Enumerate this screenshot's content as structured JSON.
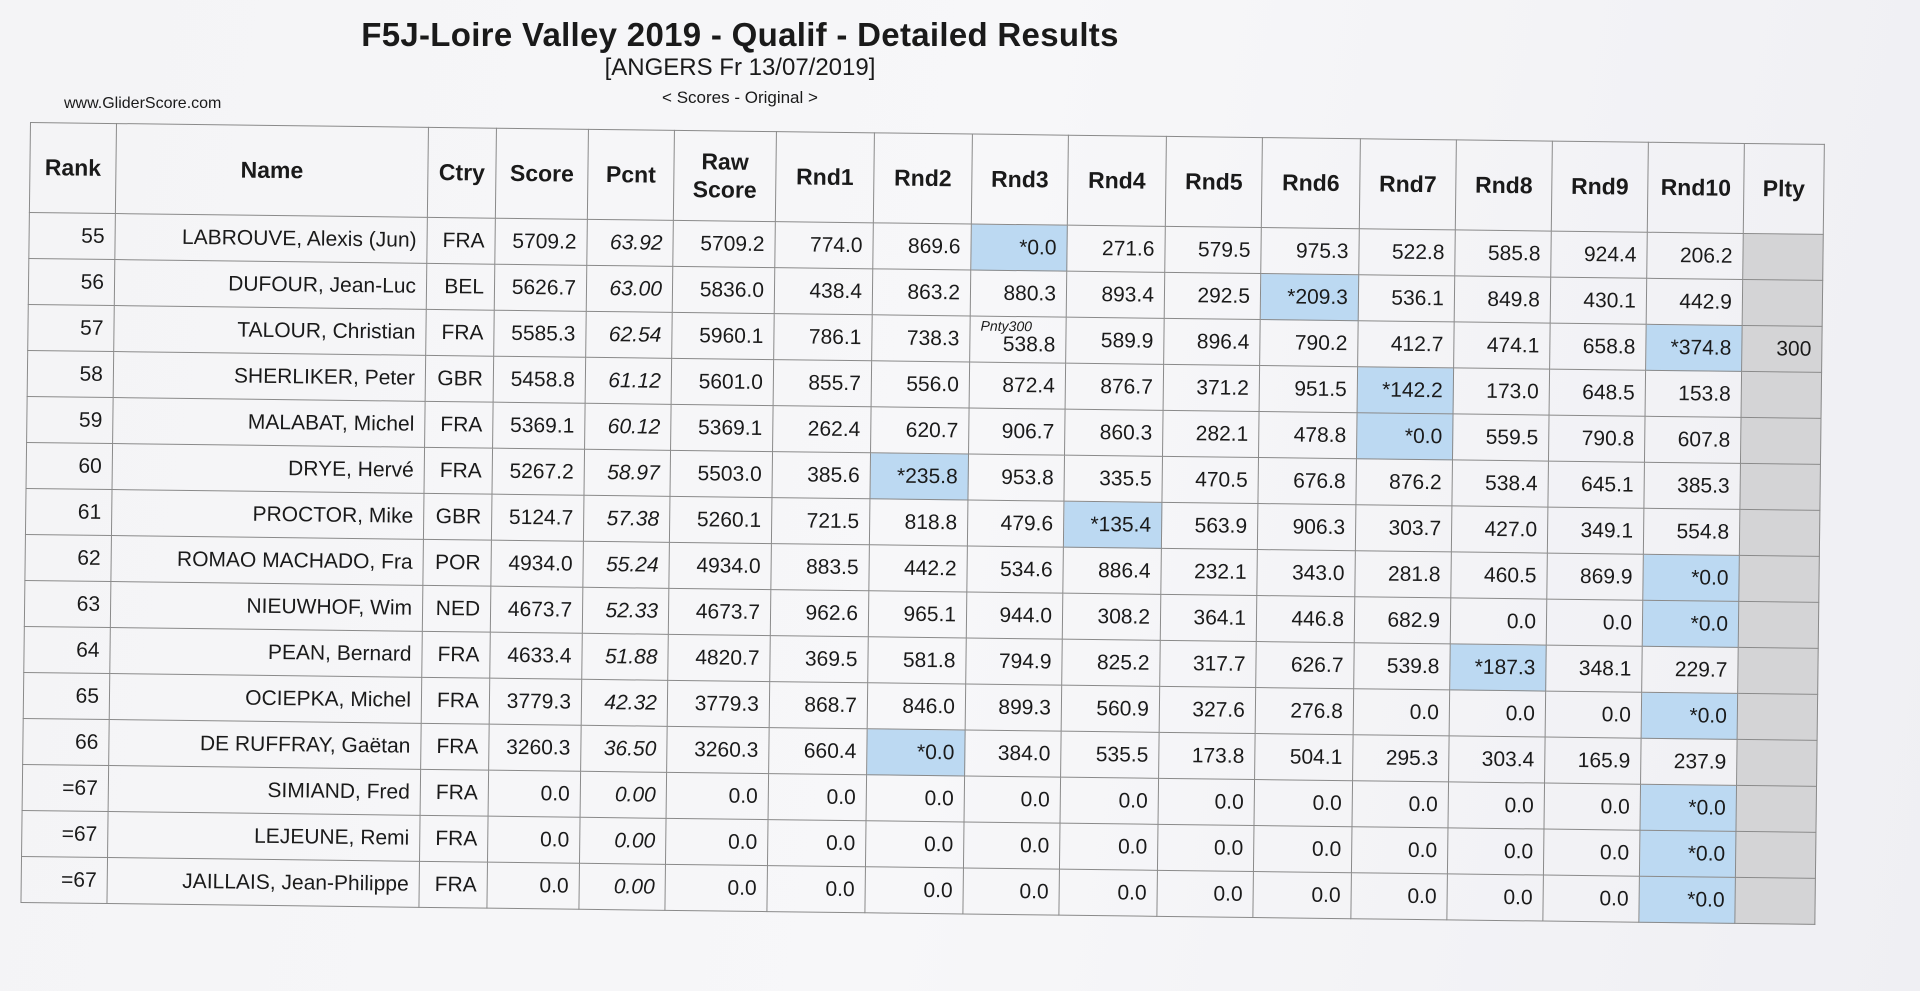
{
  "header": {
    "title": "F5J-Loire Valley 2019 - Qualif - Detailed Results",
    "subtitle": "[ANGERS Fr 13/07/2019]",
    "scores_mode": "< Scores - Original >",
    "website": "www.GliderScore.com"
  },
  "colors": {
    "highlight": "#bcd9f2",
    "penalty_column": "#d4d4d6"
  },
  "columns": [
    "Rank",
    "Name",
    "Ctry",
    "Score",
    "Pcnt",
    "Raw Score",
    "Rnd1",
    "Rnd2",
    "Rnd3",
    "Rnd4",
    "Rnd5",
    "Rnd6",
    "Rnd7",
    "Rnd8",
    "Rnd9",
    "Rnd10",
    "Plty"
  ],
  "rows": [
    {
      "rank": "55",
      "name": "LABROUVE, Alexis (Jun)",
      "ctry": "FRA",
      "score": "5709.2",
      "pcnt": "63.92",
      "raw": "5709.2",
      "rounds": [
        "774.0",
        "869.6",
        "*0.0",
        "271.6",
        "579.5",
        "975.3",
        "522.8",
        "585.8",
        "924.4",
        "206.2"
      ],
      "highlight": [
        2
      ],
      "plty": ""
    },
    {
      "rank": "56",
      "name": "DUFOUR, Jean-Luc",
      "ctry": "BEL",
      "score": "5626.7",
      "pcnt": "63.00",
      "raw": "5836.0",
      "rounds": [
        "438.4",
        "863.2",
        "880.3",
        "893.4",
        "292.5",
        "*209.3",
        "536.1",
        "849.8",
        "430.1",
        "442.9"
      ],
      "highlight": [
        5
      ],
      "plty": ""
    },
    {
      "rank": "57",
      "name": "TALOUR, Christian",
      "ctry": "FRA",
      "score": "5585.3",
      "pcnt": "62.54",
      "raw": "5960.1",
      "rounds": [
        "786.1",
        "738.3",
        "538.8",
        "589.9",
        "896.4",
        "790.2",
        "412.7",
        "474.1",
        "658.8",
        "*374.8"
      ],
      "highlight": [
        9
      ],
      "note": "Pnty300",
      "note_round": 2,
      "plty": "300"
    },
    {
      "rank": "58",
      "name": "SHERLIKER, Peter",
      "ctry": "GBR",
      "score": "5458.8",
      "pcnt": "61.12",
      "raw": "5601.0",
      "rounds": [
        "855.7",
        "556.0",
        "872.4",
        "876.7",
        "371.2",
        "951.5",
        "*142.2",
        "173.0",
        "648.5",
        "153.8"
      ],
      "highlight": [
        6
      ],
      "plty": ""
    },
    {
      "rank": "59",
      "name": "MALABAT, Michel",
      "ctry": "FRA",
      "score": "5369.1",
      "pcnt": "60.12",
      "raw": "5369.1",
      "rounds": [
        "262.4",
        "620.7",
        "906.7",
        "860.3",
        "282.1",
        "478.8",
        "*0.0",
        "559.5",
        "790.8",
        "607.8"
      ],
      "highlight": [
        6
      ],
      "plty": ""
    },
    {
      "rank": "60",
      "name": "DRYE, Hervé",
      "ctry": "FRA",
      "score": "5267.2",
      "pcnt": "58.97",
      "raw": "5503.0",
      "rounds": [
        "385.6",
        "*235.8",
        "953.8",
        "335.5",
        "470.5",
        "676.8",
        "876.2",
        "538.4",
        "645.1",
        "385.3"
      ],
      "highlight": [
        1
      ],
      "plty": ""
    },
    {
      "rank": "61",
      "name": "PROCTOR, Mike",
      "ctry": "GBR",
      "score": "5124.7",
      "pcnt": "57.38",
      "raw": "5260.1",
      "rounds": [
        "721.5",
        "818.8",
        "479.6",
        "*135.4",
        "563.9",
        "906.3",
        "303.7",
        "427.0",
        "349.1",
        "554.8"
      ],
      "highlight": [
        3
      ],
      "plty": ""
    },
    {
      "rank": "62",
      "name": "ROMAO MACHADO, Fra",
      "ctry": "POR",
      "score": "4934.0",
      "pcnt": "55.24",
      "raw": "4934.0",
      "rounds": [
        "883.5",
        "442.2",
        "534.6",
        "886.4",
        "232.1",
        "343.0",
        "281.8",
        "460.5",
        "869.9",
        "*0.0"
      ],
      "highlight": [
        9
      ],
      "plty": ""
    },
    {
      "rank": "63",
      "name": "NIEUWHOF, Wim",
      "ctry": "NED",
      "score": "4673.7",
      "pcnt": "52.33",
      "raw": "4673.7",
      "rounds": [
        "962.6",
        "965.1",
        "944.0",
        "308.2",
        "364.1",
        "446.8",
        "682.9",
        "0.0",
        "0.0",
        "*0.0"
      ],
      "highlight": [
        9
      ],
      "plty": ""
    },
    {
      "rank": "64",
      "name": "PEAN, Bernard",
      "ctry": "FRA",
      "score": "4633.4",
      "pcnt": "51.88",
      "raw": "4820.7",
      "rounds": [
        "369.5",
        "581.8",
        "794.9",
        "825.2",
        "317.7",
        "626.7",
        "539.8",
        "*187.3",
        "348.1",
        "229.7"
      ],
      "highlight": [
        7
      ],
      "plty": ""
    },
    {
      "rank": "65",
      "name": "OCIEPKA, Michel",
      "ctry": "FRA",
      "score": "3779.3",
      "pcnt": "42.32",
      "raw": "3779.3",
      "rounds": [
        "868.7",
        "846.0",
        "899.3",
        "560.9",
        "327.6",
        "276.8",
        "0.0",
        "0.0",
        "0.0",
        "*0.0"
      ],
      "highlight": [
        9
      ],
      "plty": ""
    },
    {
      "rank": "66",
      "name": "DE RUFFRAY, Gaëtan",
      "ctry": "FRA",
      "score": "3260.3",
      "pcnt": "36.50",
      "raw": "3260.3",
      "rounds": [
        "660.4",
        "*0.0",
        "384.0",
        "535.5",
        "173.8",
        "504.1",
        "295.3",
        "303.4",
        "165.9",
        "237.9"
      ],
      "highlight": [
        1
      ],
      "plty": ""
    },
    {
      "rank": "=67",
      "name": "SIMIAND, Fred",
      "ctry": "FRA",
      "score": "0.0",
      "pcnt": "0.00",
      "raw": "0.0",
      "rounds": [
        "0.0",
        "0.0",
        "0.0",
        "0.0",
        "0.0",
        "0.0",
        "0.0",
        "0.0",
        "0.0",
        "*0.0"
      ],
      "highlight": [
        9
      ],
      "plty": ""
    },
    {
      "rank": "=67",
      "name": "LEJEUNE, Remi",
      "ctry": "FRA",
      "score": "0.0",
      "pcnt": "0.00",
      "raw": "0.0",
      "rounds": [
        "0.0",
        "0.0",
        "0.0",
        "0.0",
        "0.0",
        "0.0",
        "0.0",
        "0.0",
        "0.0",
        "*0.0"
      ],
      "highlight": [
        9
      ],
      "plty": ""
    },
    {
      "rank": "=67",
      "name": "JAILLAIS, Jean-Philippe",
      "ctry": "FRA",
      "score": "0.0",
      "pcnt": "0.00",
      "raw": "0.0",
      "rounds": [
        "0.0",
        "0.0",
        "0.0",
        "0.0",
        "0.0",
        "0.0",
        "0.0",
        "0.0",
        "0.0",
        "*0.0"
      ],
      "highlight": [
        9
      ],
      "plty": ""
    }
  ]
}
